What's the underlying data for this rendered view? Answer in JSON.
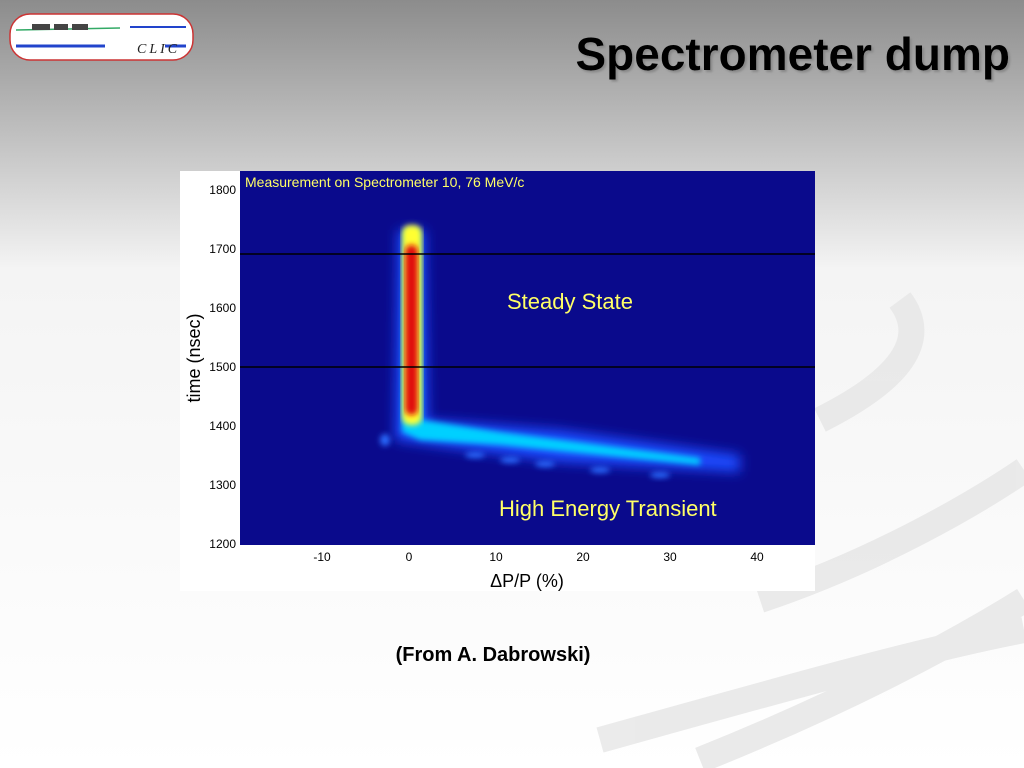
{
  "header": {
    "title": "Spectrometer dump",
    "logo_text": "CLIC"
  },
  "figure": {
    "title": "Measurement on Spectrometer  10,  76 MeV/c",
    "x_label": "ΔP/P (%)",
    "y_label": "time (nsec)",
    "x_ticks": [
      "-10",
      "0",
      "10",
      "20",
      "30",
      "40"
    ],
    "y_ticks": [
      "1800",
      "1700",
      "1600",
      "1500",
      "1400",
      "1300",
      "1200"
    ],
    "annotations": [
      "Steady State",
      "High Energy Transient"
    ]
  },
  "caption": "(From A. Dabrowski)"
}
